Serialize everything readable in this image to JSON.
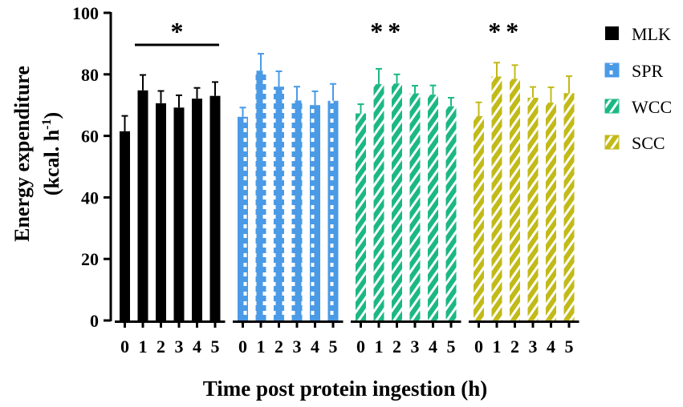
{
  "chart_data": {
    "type": "bar",
    "ylabel": "Energy expenditure",
    "ylabel_unit_base": "(kcal. h",
    "ylabel_unit_sup": "-1",
    "ylabel_unit_close": ")",
    "xlabel": "Time post protein ingestion (h)",
    "ylim": [
      0,
      100
    ],
    "yticks": [
      0,
      20,
      40,
      60,
      80,
      100
    ],
    "categories": [
      "0",
      "1",
      "2",
      "3",
      "4",
      "5"
    ],
    "series": [
      {
        "name": "MLK",
        "color": "#000000",
        "pattern": "solid",
        "values": [
          61.5,
          74.8,
          70.6,
          69.2,
          72.1,
          73.0
        ],
        "errors": [
          5.0,
          5.0,
          4.0,
          4.0,
          3.5,
          4.5
        ]
      },
      {
        "name": "SPR",
        "color": "#4a9ae6",
        "pattern": "dots",
        "values": [
          66.2,
          81.2,
          76.0,
          71.5,
          70.0,
          71.4
        ],
        "errors": [
          3.0,
          5.5,
          5.0,
          4.5,
          4.5,
          5.5
        ]
      },
      {
        "name": "WCC",
        "color": "#1cb883",
        "pattern": "stripes",
        "values": [
          67.3,
          76.8,
          77.0,
          73.8,
          73.4,
          69.6
        ],
        "errors": [
          3.0,
          5.0,
          3.0,
          2.5,
          3.0,
          2.8
        ]
      },
      {
        "name": "SCC",
        "color": "#c2ba18",
        "pattern": "stripes",
        "values": [
          66.4,
          79.3,
          78.5,
          72.4,
          70.8,
          73.9
        ],
        "errors": [
          4.5,
          4.5,
          4.5,
          3.5,
          5.0,
          5.5
        ]
      }
    ],
    "annotations": [
      {
        "series": 0,
        "text": "*",
        "bracket": true
      },
      {
        "series": 2,
        "text": "**",
        "bracket": false
      },
      {
        "series": 3,
        "text": "**",
        "bracket": false
      }
    ]
  }
}
